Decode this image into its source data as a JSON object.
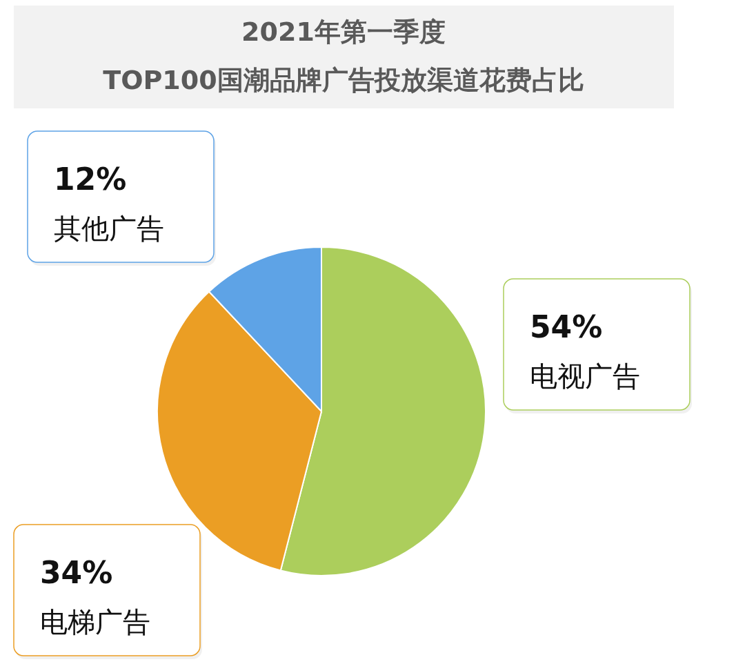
{
  "chart_data": {
    "type": "pie",
    "title": "2021年第一季度\nTOP100国潮品牌广告投放渠道花费占比",
    "categories": [
      "电视广告",
      "电梯广告",
      "其他广告"
    ],
    "values": [
      54,
      34,
      12
    ],
    "value_labels": [
      "54%",
      "34%",
      "12%"
    ],
    "colors": [
      "#acce5c",
      "#eb9e24",
      "#5ea3e6"
    ]
  }
}
